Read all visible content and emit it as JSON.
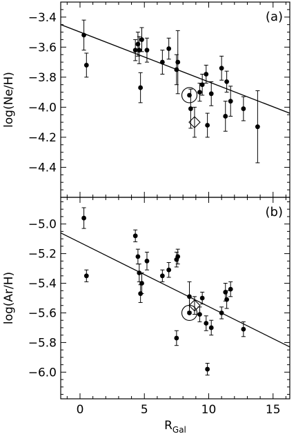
{
  "chart_data": [
    {
      "panel_label": "(a)",
      "type": "scatter",
      "xlabel": "R",
      "xlabel_sub": "Gal",
      "ylabel": "log(Ne/H)",
      "xlim": [
        -1.5,
        16.3
      ],
      "ylim": [
        -4.6,
        -3.3
      ],
      "xticks": [
        0,
        5,
        10,
        15
      ],
      "yticks": [
        -4.4,
        -4.2,
        -4.0,
        -3.8,
        -3.6,
        -3.4
      ],
      "ytick_labels": [
        "−4.4",
        "−4.2",
        "−4.0",
        "−3.8",
        "−3.6",
        "−3.4"
      ],
      "points": [
        {
          "x": 0.3,
          "y": -3.52,
          "err": 0.1
        },
        {
          "x": 0.5,
          "y": -3.72,
          "err": 0.08
        },
        {
          "x": 4.3,
          "y": -3.62,
          "err": 0.07
        },
        {
          "x": 4.5,
          "y": -3.58,
          "err": 0.08
        },
        {
          "x": 4.6,
          "y": -3.62,
          "err": 0.09
        },
        {
          "x": 4.7,
          "y": -3.87,
          "err": 0.1
        },
        {
          "x": 4.8,
          "y": -3.55,
          "err": 0.08
        },
        {
          "x": 5.2,
          "y": -3.62,
          "err": 0.08
        },
        {
          "x": 6.4,
          "y": -3.7,
          "err": 0.08
        },
        {
          "x": 6.9,
          "y": -3.61,
          "err": 0.07
        },
        {
          "x": 7.5,
          "y": -3.75,
          "err": 0.1
        },
        {
          "x": 7.6,
          "y": -3.7,
          "err": 0.21
        },
        {
          "x": 8.5,
          "y": -3.92,
          "err": 0
        },
        {
          "x": 8.6,
          "y": -4.01,
          "err": 0.13
        },
        {
          "x": 9.3,
          "y": -3.9,
          "err": 0.06
        },
        {
          "x": 9.5,
          "y": -3.85,
          "err": 0.07
        },
        {
          "x": 9.8,
          "y": -3.78,
          "err": 0.06
        },
        {
          "x": 9.9,
          "y": -4.12,
          "err": 0.08
        },
        {
          "x": 10.2,
          "y": -3.91,
          "err": 0.08
        },
        {
          "x": 11.0,
          "y": -3.74,
          "err": 0.08
        },
        {
          "x": 11.3,
          "y": -4.06,
          "err": 0.1
        },
        {
          "x": 11.4,
          "y": -3.83,
          "err": 0.07
        },
        {
          "x": 11.7,
          "y": -3.96,
          "err": 0.1
        },
        {
          "x": 12.7,
          "y": -4.01,
          "err": 0.08
        },
        {
          "x": 13.8,
          "y": -4.13,
          "err": 0.24
        }
      ],
      "open_circle": {
        "x": 8.5,
        "y": -3.92
      },
      "diamond": {
        "x": 8.9,
        "y": -4.1,
        "err": 0.1
      },
      "fit_line": {
        "x": [
          -1.5,
          16.3
        ],
        "y": [
          -3.45,
          -4.04
        ]
      }
    },
    {
      "panel_label": "(b)",
      "type": "scatter",
      "xlabel": "R",
      "xlabel_sub": "Gal",
      "ylabel": "log(Ar/H)",
      "xlim": [
        -1.5,
        16.3
      ],
      "ylim": [
        -6.18,
        -4.82
      ],
      "xticks": [
        0,
        5,
        10,
        15
      ],
      "xtick_labels": [
        "0",
        "5",
        "10",
        "15"
      ],
      "yticks": [
        -6.0,
        -5.8,
        -5.6,
        -5.4,
        -5.2,
        -5.0
      ],
      "ytick_labels": [
        "−6.0",
        "−5.8",
        "−5.6",
        "−5.4",
        "−5.2",
        "−5.0"
      ],
      "points": [
        {
          "x": 0.3,
          "y": -4.96,
          "err": 0.07
        },
        {
          "x": 0.5,
          "y": -5.35,
          "err": 0.04
        },
        {
          "x": 4.3,
          "y": -5.08,
          "err": 0.04
        },
        {
          "x": 4.5,
          "y": -5.22,
          "err": 0.05
        },
        {
          "x": 4.6,
          "y": -5.33,
          "err": 0.06
        },
        {
          "x": 4.7,
          "y": -5.47,
          "err": 0.06
        },
        {
          "x": 4.8,
          "y": -5.4,
          "err": 0.07
        },
        {
          "x": 5.2,
          "y": -5.25,
          "err": 0.06
        },
        {
          "x": 6.4,
          "y": -5.35,
          "err": 0.04
        },
        {
          "x": 6.9,
          "y": -5.31,
          "err": 0.05
        },
        {
          "x": 7.5,
          "y": -5.24,
          "err": 0.05
        },
        {
          "x": 7.6,
          "y": -5.22,
          "err": 0.05
        },
        {
          "x": 7.5,
          "y": -5.77,
          "err": 0.05
        },
        {
          "x": 8.5,
          "y": -5.49,
          "err": 0.1
        },
        {
          "x": 8.5,
          "y": -5.6,
          "err": 0
        },
        {
          "x": 9.3,
          "y": -5.61,
          "err": 0.05
        },
        {
          "x": 9.5,
          "y": -5.5,
          "err": 0.04
        },
        {
          "x": 9.8,
          "y": -5.67,
          "err": 0.05
        },
        {
          "x": 9.9,
          "y": -5.98,
          "err": 0.04
        },
        {
          "x": 10.2,
          "y": -5.7,
          "err": 0.05
        },
        {
          "x": 11.0,
          "y": -5.6,
          "err": 0.04
        },
        {
          "x": 11.3,
          "y": -5.46,
          "err": 0.06
        },
        {
          "x": 11.4,
          "y": -5.51,
          "err": 0.06
        },
        {
          "x": 11.7,
          "y": -5.44,
          "err": 0.05
        },
        {
          "x": 12.7,
          "y": -5.71,
          "err": 0.05
        }
      ],
      "open_circle": {
        "x": 8.5,
        "y": -5.6
      },
      "diamond": {
        "x": 8.9,
        "y": -5.55,
        "err": 0.06
      },
      "fit_line": {
        "x": [
          -1.5,
          16.3
        ],
        "y": [
          -5.06,
          -5.83
        ]
      }
    }
  ]
}
